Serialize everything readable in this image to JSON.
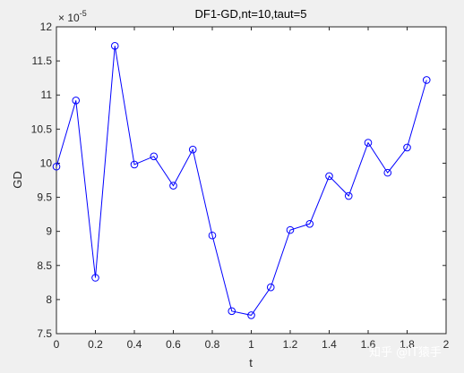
{
  "chart_data": {
    "type": "line",
    "title": "DF1-GD,nt=10,taut=5",
    "xlabel": "t",
    "ylabel": "GD",
    "y_exponent_label": "× 10",
    "y_exponent_power": "-5",
    "xlim": [
      0,
      2
    ],
    "ylim": [
      7.5,
      12
    ],
    "x_ticks": [
      "0",
      "0.2",
      "0.4",
      "0.6",
      "0.8",
      "1",
      "1.2",
      "1.4",
      "1.6",
      "1.8",
      "2"
    ],
    "y_ticks": [
      "7.5",
      "8",
      "8.5",
      "9",
      "9.5",
      "10",
      "10.5",
      "11",
      "11.5",
      "12"
    ],
    "x": [
      0,
      0.1,
      0.2,
      0.3,
      0.4,
      0.5,
      0.6,
      0.7,
      0.8,
      0.9,
      1.0,
      1.1,
      1.2,
      1.3,
      1.4,
      1.5,
      1.6,
      1.7,
      1.8,
      1.9
    ],
    "series": [
      {
        "values": [
          9.95,
          10.92,
          8.32,
          11.72,
          9.98,
          10.1,
          9.67,
          10.2,
          8.94,
          7.83,
          7.77,
          8.18,
          9.02,
          9.11,
          9.81,
          9.52,
          10.3,
          9.86,
          10.23,
          11.22
        ],
        "color": "#0000ff",
        "marker": "circle"
      }
    ],
    "grid": false,
    "legend": "none"
  },
  "watermark": {
    "text": "知乎 @IT猿手"
  },
  "colors": {
    "background": "#f0f0f0",
    "axes": "#ffffff",
    "line": "#0000ff"
  }
}
